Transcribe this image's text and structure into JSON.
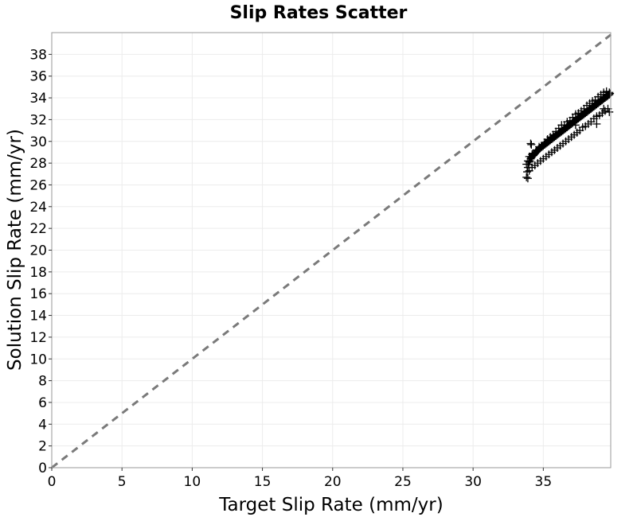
{
  "chart_data": {
    "type": "scatter",
    "title": "Slip Rates Scatter",
    "xlabel": "Target Slip Rate (mm/yr)",
    "ylabel": "Solution Slip Rate (mm/yr)",
    "xlim": [
      0,
      39.8
    ],
    "ylim": [
      0,
      40
    ],
    "xticks": [
      0,
      5,
      10,
      15,
      20,
      25,
      30,
      35
    ],
    "yticks": [
      0,
      2,
      4,
      6,
      8,
      10,
      12,
      14,
      16,
      18,
      20,
      22,
      24,
      26,
      28,
      30,
      32,
      34,
      36,
      38
    ],
    "grid": true,
    "marker": "plus",
    "reference_line": {
      "x": [
        0,
        39.8
      ],
      "y": [
        0,
        39.8
      ],
      "style": "dashed",
      "color": "#7a7a7a"
    },
    "series": [
      {
        "x": [
          33.8,
          33.85,
          33.9,
          33.95,
          34.0,
          34.05,
          34.1,
          34.15,
          34.2,
          34.25,
          34.3,
          34.35,
          34.4,
          34.45,
          34.5,
          34.55,
          34.6,
          34.65,
          34.7,
          34.75,
          34.8,
          34.85,
          34.9,
          34.95,
          35.0,
          35.05,
          35.1,
          35.15,
          35.2,
          35.25,
          35.3,
          35.35,
          35.4,
          35.45,
          35.5,
          35.55,
          35.6,
          35.65,
          35.7,
          35.75,
          35.8,
          35.85,
          35.9,
          35.95,
          36.0,
          36.05,
          36.1,
          36.15,
          36.2,
          36.25,
          36.3,
          36.35,
          36.4,
          36.45,
          36.5,
          36.55,
          36.6,
          36.65,
          36.7,
          36.75,
          36.8,
          36.85,
          36.9,
          36.95,
          37.0,
          37.05,
          37.1,
          37.15,
          37.2,
          37.25,
          37.3,
          37.35,
          37.4,
          37.45,
          37.5,
          37.55,
          37.6,
          37.65,
          37.7,
          37.75,
          37.8,
          37.85,
          37.9,
          37.95,
          38.0,
          38.05,
          38.1,
          38.15,
          38.2,
          38.25,
          38.3,
          38.35,
          38.4,
          38.45,
          38.5,
          38.55,
          38.6,
          38.65,
          38.7,
          38.75,
          38.8,
          38.85,
          38.9,
          38.95,
          39.0,
          39.05,
          39.1,
          39.15,
          39.2,
          39.25,
          39.3,
          39.35,
          39.4,
          39.45,
          39.5,
          39.55,
          39.6,
          39.65,
          39.7,
          39.75,
          33.8,
          33.9,
          34.0,
          34.1,
          34.2,
          34.3,
          34.5,
          34.7,
          34.9,
          35.1,
          35.3,
          35.5,
          35.7,
          35.9,
          36.1,
          36.3,
          36.5,
          36.7,
          36.9,
          37.1,
          37.3,
          37.5,
          37.7,
          37.9,
          38.1,
          38.3,
          38.5,
          38.7,
          38.9,
          39.1,
          39.3,
          39.5,
          39.7,
          39.6,
          39.4,
          39.2,
          39.0,
          38.8,
          38.6,
          38.4,
          38.2,
          38.0,
          37.8,
          37.6,
          37.4,
          37.2,
          37.0,
          36.8,
          36.6,
          36.4,
          36.2,
          36.0,
          35.8,
          35.6,
          35.4,
          35.2,
          35.0,
          34.8,
          34.6,
          34.4,
          34.2,
          34.0,
          33.9,
          34.1,
          39.3,
          39.7,
          38.8,
          34.15,
          37.3
        ],
        "y": [
          26.7,
          27.2,
          27.6,
          27.9,
          28.1,
          28.2,
          28.4,
          28.5,
          28.6,
          28.7,
          28.7,
          28.8,
          28.9,
          29.0,
          29.0,
          29.1,
          29.2,
          29.2,
          29.3,
          29.4,
          29.4,
          29.5,
          29.5,
          29.6,
          29.6,
          29.7,
          29.7,
          29.8,
          29.8,
          29.9,
          29.9,
          30.0,
          30.0,
          30.1,
          30.1,
          30.2,
          30.2,
          30.3,
          30.3,
          30.4,
          30.4,
          30.5,
          30.5,
          30.6,
          30.6,
          30.7,
          30.7,
          30.8,
          30.8,
          30.9,
          30.9,
          31.0,
          31.0,
          31.1,
          31.1,
          31.2,
          31.2,
          31.3,
          31.3,
          31.4,
          31.4,
          31.5,
          31.5,
          31.6,
          31.6,
          31.7,
          31.7,
          31.8,
          31.8,
          31.9,
          31.9,
          32.0,
          32.0,
          32.1,
          32.1,
          32.2,
          32.2,
          32.3,
          32.3,
          32.4,
          32.4,
          32.5,
          32.5,
          32.6,
          32.6,
          32.7,
          32.7,
          32.8,
          32.8,
          32.9,
          32.9,
          33.0,
          33.0,
          33.1,
          33.1,
          33.2,
          33.2,
          33.3,
          33.3,
          33.4,
          33.4,
          33.5,
          33.5,
          33.6,
          33.6,
          33.7,
          33.7,
          33.8,
          33.8,
          33.9,
          33.9,
          34.0,
          34.0,
          34.1,
          34.1,
          34.2,
          34.2,
          34.3,
          34.3,
          34.4,
          27.9,
          28.2,
          28.6,
          28.4,
          28.8,
          28.9,
          29.2,
          29.5,
          29.6,
          29.9,
          30.2,
          30.4,
          30.6,
          30.9,
          31.2,
          31.5,
          31.5,
          31.8,
          31.9,
          32.2,
          32.5,
          32.6,
          32.8,
          33.0,
          33.3,
          33.5,
          33.7,
          33.8,
          34.1,
          34.3,
          34.5,
          34.6,
          34.5,
          33.0,
          32.8,
          32.6,
          32.4,
          32.3,
          32.1,
          31.8,
          31.6,
          31.4,
          31.3,
          31.0,
          30.8,
          30.6,
          30.4,
          30.2,
          30.0,
          29.8,
          29.6,
          29.4,
          29.2,
          29.0,
          28.8,
          28.6,
          28.4,
          28.2,
          28.0,
          27.8,
          27.6,
          27.3,
          26.6,
          29.8,
          33.0,
          32.7,
          31.6,
          29.7,
          31.5
        ]
      }
    ]
  }
}
